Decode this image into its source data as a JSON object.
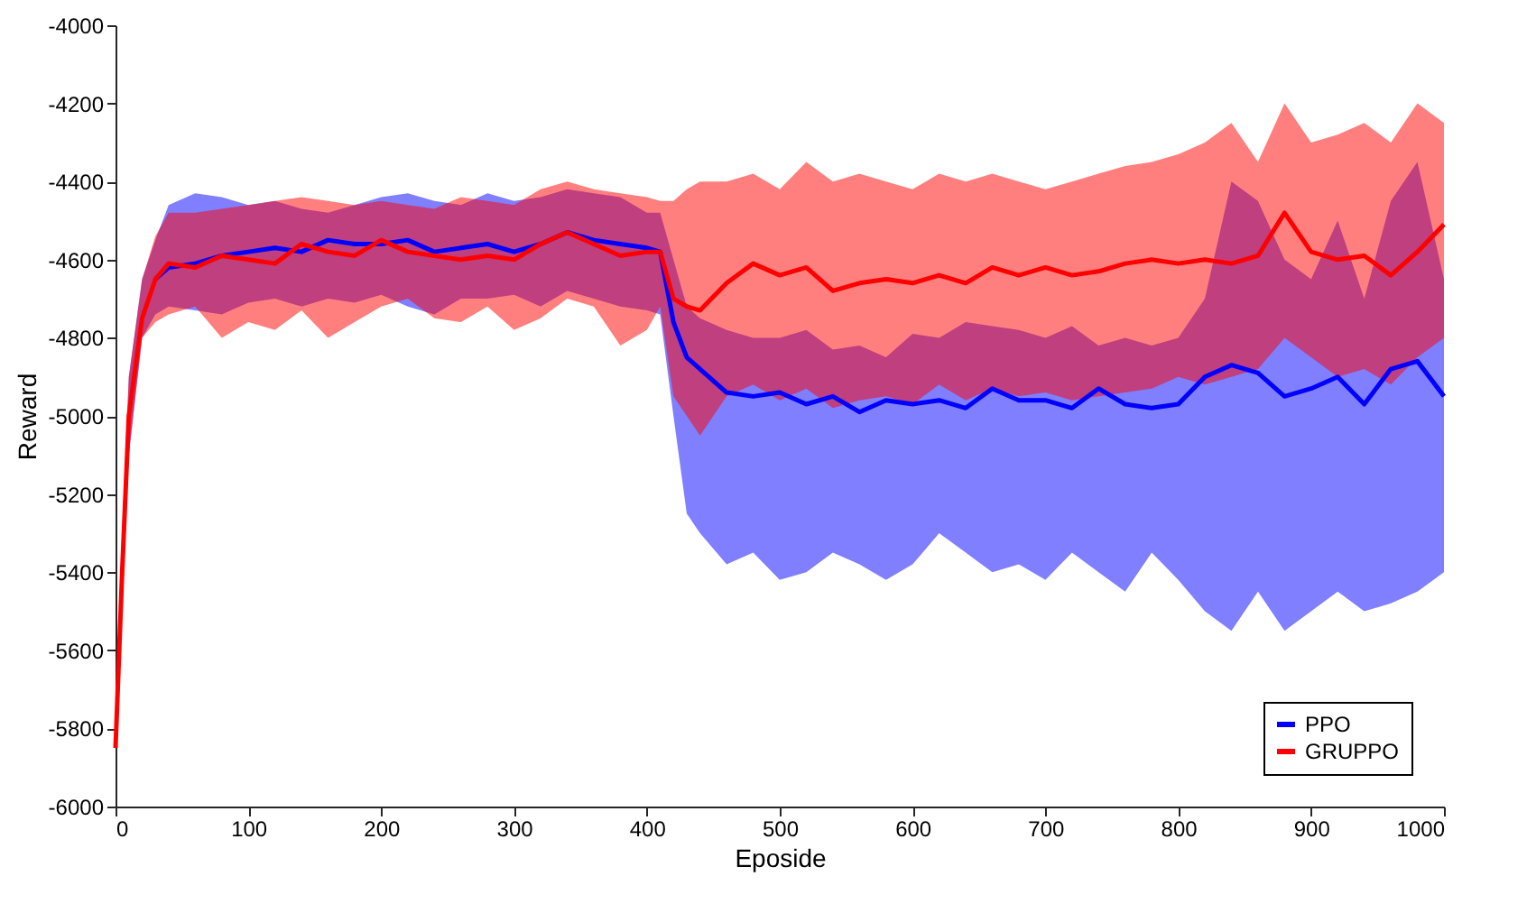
{
  "chart_data": {
    "type": "line",
    "xlabel": "Eposide",
    "ylabel": "Reward",
    "x": [
      0,
      5,
      10,
      20,
      30,
      40,
      60,
      80,
      100,
      120,
      140,
      160,
      180,
      200,
      220,
      240,
      260,
      280,
      300,
      320,
      340,
      360,
      380,
      400,
      410,
      420,
      430,
      440,
      460,
      480,
      500,
      520,
      540,
      560,
      580,
      600,
      620,
      640,
      660,
      680,
      700,
      720,
      740,
      760,
      780,
      800,
      820,
      840,
      860,
      880,
      900,
      920,
      940,
      960,
      980,
      1000
    ],
    "series": [
      {
        "name": "PPO",
        "color": "#0000ff",
        "values": [
          null,
          null,
          null,
          null,
          -4650,
          -4620,
          -4610,
          -4590,
          -4580,
          -4570,
          -4580,
          -4550,
          -4560,
          -4560,
          -4550,
          -4580,
          -4570,
          -4560,
          -4580,
          -4560,
          -4530,
          -4550,
          -4560,
          -4570,
          -4580,
          -4760,
          -4850,
          -4880,
          -4940,
          -4950,
          -4940,
          -4970,
          -4950,
          -4990,
          -4960,
          -4970,
          -4960,
          -4980,
          -4930,
          -4960,
          -4960,
          -4980,
          -4930,
          -4970,
          -4980,
          -4970,
          -4900,
          -4870,
          -4890,
          -4950,
          -4930,
          -4900,
          -4970,
          -4880,
          -4860,
          -4950
        ],
        "lower": [
          -5850,
          -5500,
          -5100,
          -4800,
          -4740,
          -4720,
          -4730,
          -4740,
          -4710,
          -4700,
          -4720,
          -4700,
          -4710,
          -4690,
          -4720,
          -4740,
          -4700,
          -4700,
          -4690,
          -4720,
          -4680,
          -4700,
          -4720,
          -4730,
          -4740,
          -5000,
          -5250,
          -5300,
          -5380,
          -5350,
          -5420,
          -5400,
          -5350,
          -5380,
          -5420,
          -5380,
          -5300,
          -5350,
          -5400,
          -5380,
          -5420,
          -5350,
          -5400,
          -5450,
          -5350,
          -5420,
          -5500,
          -5550,
          -5450,
          -5550,
          -5500,
          -5450,
          -5500,
          -5480,
          -5450,
          -5400
        ],
        "upper": [
          -5850,
          -5300,
          -4900,
          -4650,
          -4550,
          -4460,
          -4430,
          -4440,
          -4460,
          -4450,
          -4470,
          -4480,
          -4460,
          -4440,
          -4430,
          -4450,
          -4460,
          -4430,
          -4450,
          -4440,
          -4420,
          -4430,
          -4440,
          -4480,
          -4480,
          -4600,
          -4720,
          -4750,
          -4780,
          -4800,
          -4800,
          -4780,
          -4830,
          -4820,
          -4850,
          -4790,
          -4800,
          -4760,
          -4770,
          -4780,
          -4800,
          -4770,
          -4820,
          -4800,
          -4820,
          -4800,
          -4700,
          -4400,
          -4450,
          -4600,
          -4650,
          -4500,
          -4700,
          -4450,
          -4350,
          -4650
        ]
      },
      {
        "name": "GRUPPO",
        "color": "#ff0000",
        "values": [
          -5850,
          -5400,
          -5000,
          -4750,
          -4650,
          -4610,
          -4620,
          -4590,
          -4600,
          -4610,
          -4560,
          -4580,
          -4590,
          -4550,
          -4580,
          -4590,
          -4600,
          -4590,
          -4600,
          -4560,
          -4530,
          -4560,
          -4590,
          -4580,
          -4580,
          -4700,
          -4720,
          -4730,
          -4660,
          -4610,
          -4640,
          -4620,
          -4680,
          -4660,
          -4650,
          -4660,
          -4640,
          -4660,
          -4620,
          -4640,
          -4620,
          -4640,
          -4630,
          -4610,
          -4600,
          -4610,
          -4600,
          -4610,
          -4590,
          -4480,
          -4580,
          -4600,
          -4590,
          -4640,
          -4580,
          -4510
        ],
        "lower": [
          -5850,
          -5500,
          -5100,
          -4800,
          -4760,
          -4740,
          -4720,
          -4800,
          -4760,
          -4780,
          -4730,
          -4800,
          -4760,
          -4720,
          -4700,
          -4750,
          -4760,
          -4720,
          -4780,
          -4750,
          -4700,
          -4720,
          -4820,
          -4780,
          -4720,
          -4950,
          -5000,
          -5050,
          -4950,
          -4920,
          -4960,
          -4930,
          -4980,
          -4960,
          -4950,
          -4970,
          -4920,
          -4960,
          -4930,
          -4950,
          -4940,
          -4960,
          -4950,
          -4940,
          -4930,
          -4900,
          -4920,
          -4900,
          -4880,
          -4800,
          -4850,
          -4900,
          -4880,
          -4920,
          -4850,
          -4800
        ],
        "upper": [
          -5850,
          -5300,
          -4900,
          -4650,
          -4540,
          -4480,
          -4480,
          -4470,
          -4460,
          -4450,
          -4440,
          -4450,
          -4460,
          -4450,
          -4460,
          -4470,
          -4440,
          -4450,
          -4460,
          -4420,
          -4400,
          -4420,
          -4430,
          -4440,
          -4450,
          -4450,
          -4420,
          -4400,
          -4400,
          -4380,
          -4420,
          -4350,
          -4400,
          -4380,
          -4400,
          -4420,
          -4380,
          -4400,
          -4380,
          -4400,
          -4420,
          -4400,
          -4380,
          -4360,
          -4350,
          -4330,
          -4300,
          -4250,
          -4350,
          -4200,
          -4300,
          -4280,
          -4250,
          -4300,
          -4200,
          -4250
        ]
      }
    ],
    "xlim": [
      0,
      1000
    ],
    "xticks": [
      0,
      100,
      200,
      300,
      400,
      500,
      600,
      700,
      800,
      900,
      1000
    ],
    "ylim": [
      -6000,
      -4000
    ],
    "yticks": [
      -6000,
      -5800,
      -5600,
      -5400,
      -5200,
      -5000,
      -4800,
      -4600,
      -4400,
      -4200,
      -4000
    ],
    "grid": false,
    "legend": "bottom right",
    "marker": "none",
    "line_style": "solid"
  }
}
